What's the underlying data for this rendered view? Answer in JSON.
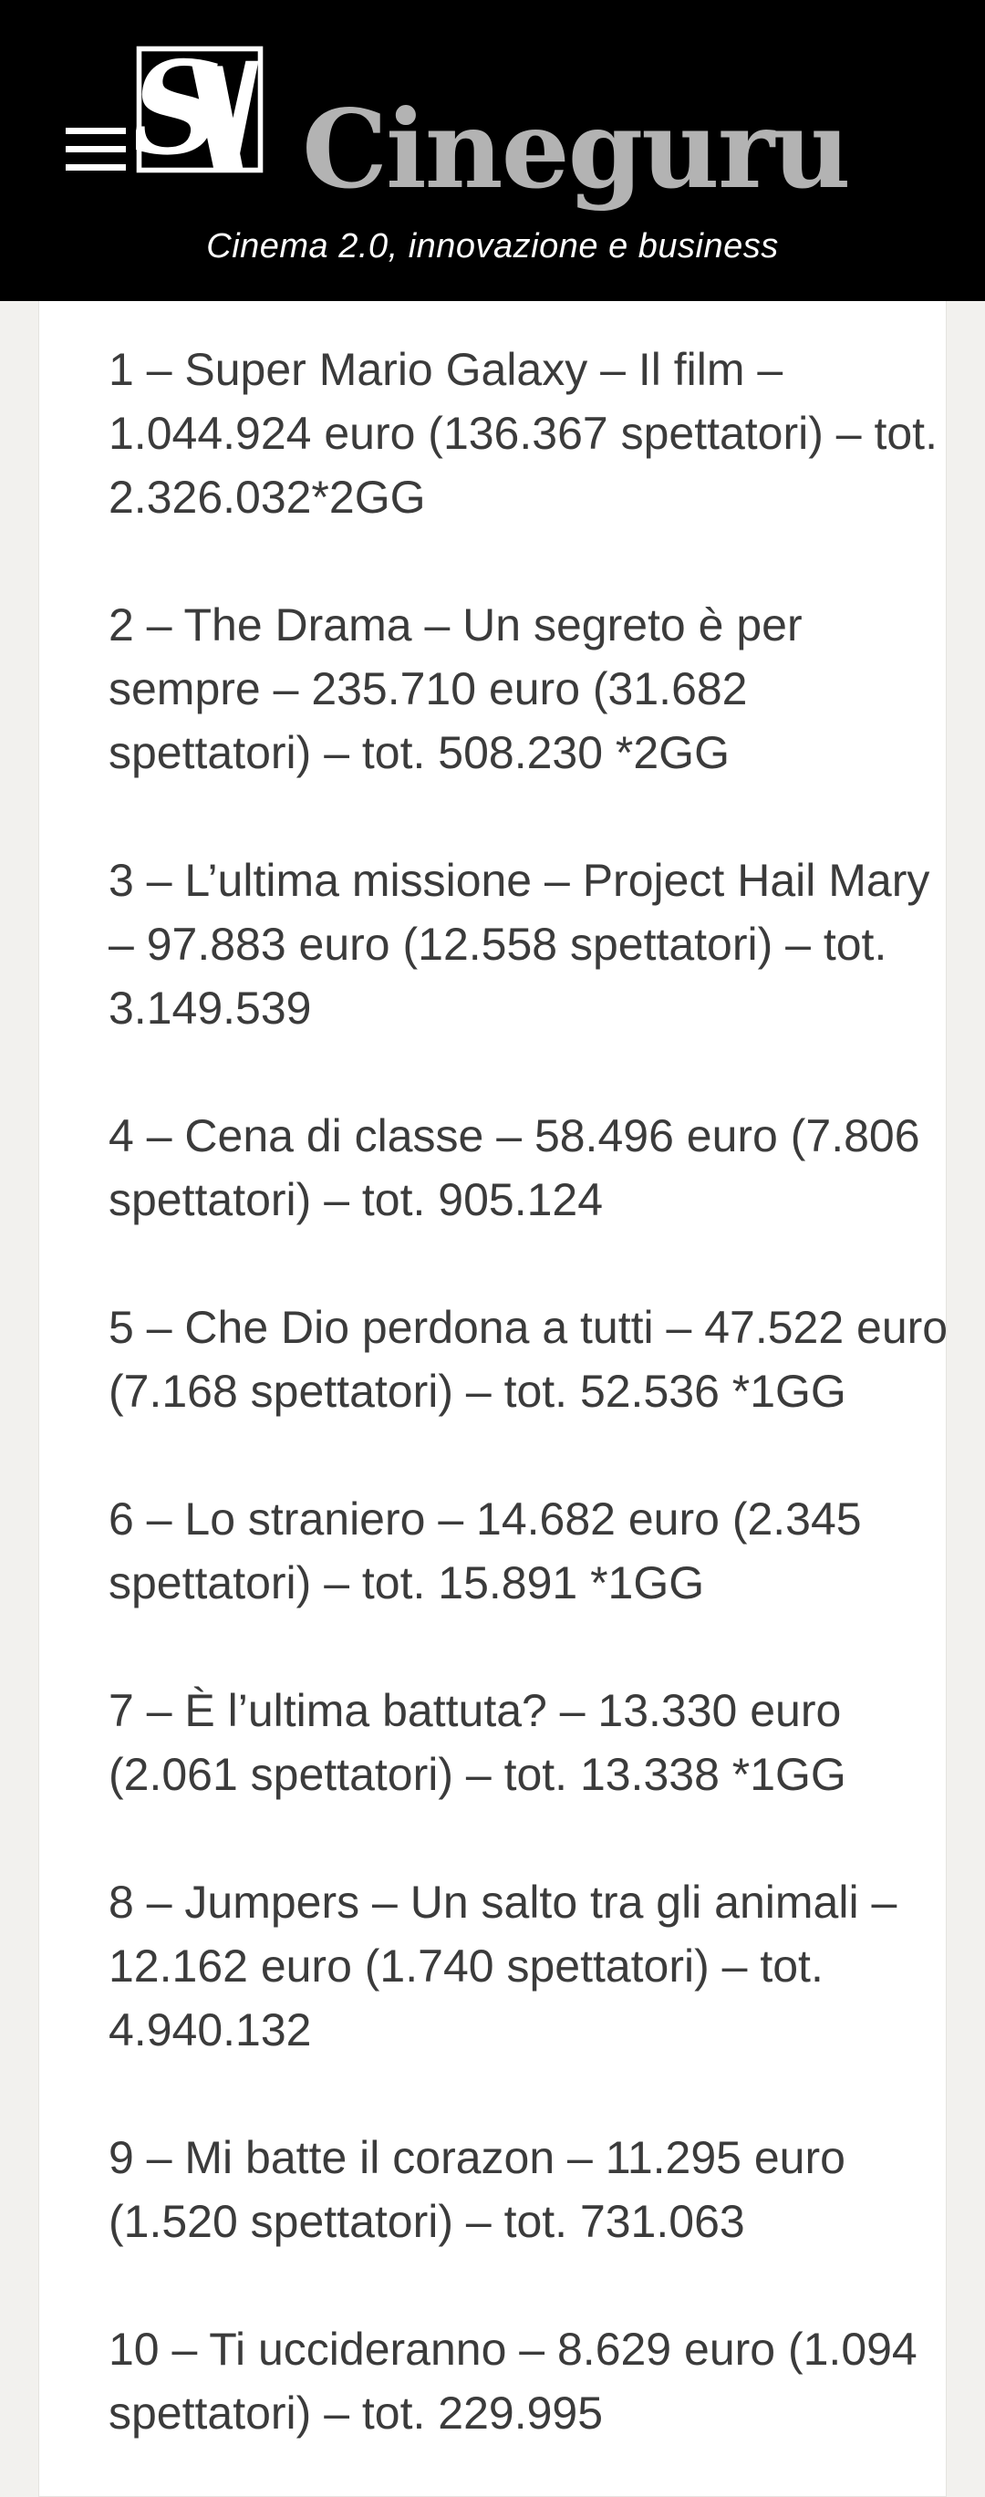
{
  "header": {
    "site_name": "Cineguru",
    "tagline": "Cinema 2.0, innovazione e business",
    "logo_monogram": "SW",
    "colors": {
      "header_bg": "#000000",
      "logo_text": "#b3b3b3",
      "tagline_text": "#ffffff"
    }
  },
  "content": {
    "colors": {
      "page_bg": "#f2f1ee",
      "card_bg": "#ffffff",
      "body_text": "#3b3b3b"
    },
    "items": [
      {
        "rank": "1",
        "lines": [
          "1 – Super Mario Galaxy – Il film –",
          "1.044.924 euro (136.367 spettatori) – tot.",
          "2.326.032*2GG"
        ]
      },
      {
        "rank": "2",
        "lines": [
          "2 – The Drama – Un segreto è per",
          "sempre – 235.710 euro (31.682",
          "spettatori) – tot. 508.230 *2GG"
        ]
      },
      {
        "rank": "3",
        "lines": [
          "3 – L’ultima missione – Project Hail Mary",
          "– 97.883 euro (12.558 spettatori) – tot.",
          "3.149.539"
        ]
      },
      {
        "rank": "4",
        "lines": [
          "4 – Cena di classe – 58.496 euro (7.806",
          "spettatori) – tot. 905.124"
        ]
      },
      {
        "rank": "5",
        "lines": [
          "5 – Che Dio perdona a tutti – 47.522 euro",
          "(7.168 spettatori) – tot. 52.536 *1GG"
        ]
      },
      {
        "rank": "6",
        "lines": [
          "6 – Lo straniero – 14.682 euro (2.345",
          "spettatori) – tot. 15.891 *1GG"
        ]
      },
      {
        "rank": "7",
        "lines": [
          "7 – È l’ultima battuta? – 13.330 euro",
          "(2.061 spettatori) – tot. 13.338 *1GG"
        ]
      },
      {
        "rank": "8",
        "lines": [
          "8 – Jumpers – Un salto tra gli animali –",
          "12.162 euro (1.740 spettatori) – tot.",
          "4.940.132"
        ]
      },
      {
        "rank": "9",
        "lines": [
          "9 – Mi batte il corazon – 11.295 euro",
          "(1.520 spettatori) – tot. 731.063"
        ]
      },
      {
        "rank": "10",
        "lines": [
          "10 – Ti uccideranno – 8.629 euro (1.094",
          "spettatori) – tot. 229.995"
        ]
      }
    ]
  }
}
